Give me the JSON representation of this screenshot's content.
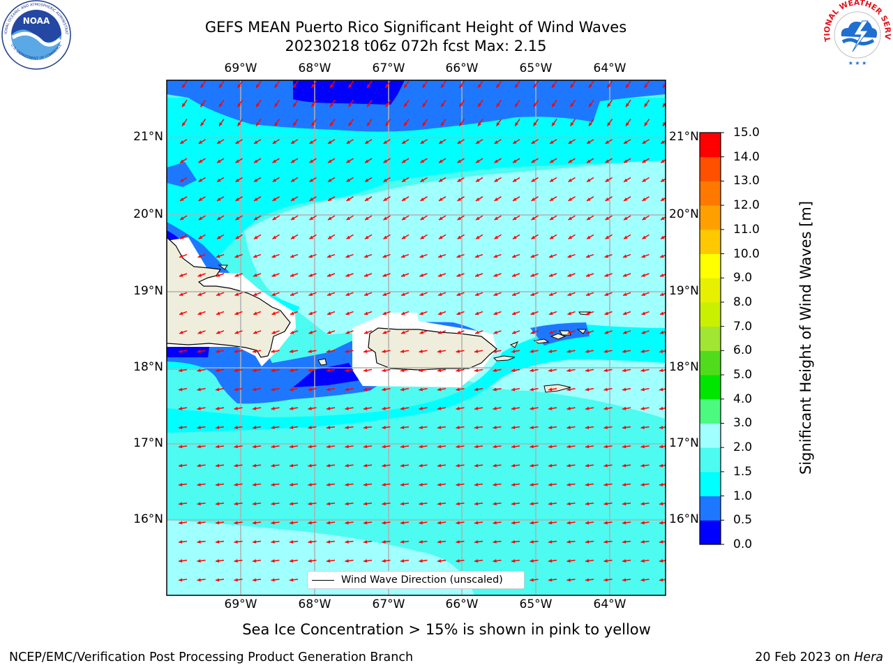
{
  "header": {
    "title_line1": "GEFS MEAN Puerto Rico Significant Height of Wind Waves",
    "title_line2": "20230218 t06z 072h fcst   Max: 2.15"
  },
  "logos": {
    "left": {
      "name": "NOAA",
      "ring_text": "NATIONAL OCEANIC AND ATMOSPHERIC ADMINISTRATION",
      "lower_text": "U.S. DEPARTMENT OF COMMERCE",
      "center_text": "NOAA"
    },
    "right": {
      "name": "National Weather Service",
      "ring_text": "NATIONAL WEATHER SERVICE"
    }
  },
  "map": {
    "lon_ticks": [
      "69°W",
      "68°W",
      "67°W",
      "66°W",
      "65°W",
      "64°W"
    ],
    "lat_ticks": [
      "21°N",
      "20°N",
      "19°N",
      "18°N",
      "17°N",
      "16°N"
    ],
    "legend_label": "Wind Wave Direction (unscaled)",
    "colors": {
      "land": "#efeddc",
      "arrow": "#ff0000",
      "grid": "#b0b0b0"
    }
  },
  "colorbar": {
    "title": "Significant Height of Wind Waves [m]",
    "tick_labels": [
      "0.0",
      "0.5",
      "1.0",
      "1.5",
      "2.0",
      "3.0",
      "4.0",
      "5.0",
      "6.0",
      "7.0",
      "8.0",
      "9.0",
      "10.0",
      "11.0",
      "12.0",
      "13.0",
      "14.0",
      "15.0"
    ],
    "colors": [
      "#0000ff",
      "#1e78ff",
      "#00ffff",
      "#4dfbf0",
      "#a0ffff",
      "#4dfa80",
      "#00e600",
      "#50dc1c",
      "#a0e632",
      "#c8f000",
      "#e6f000",
      "#ffff00",
      "#ffc800",
      "#ffa000",
      "#ff7800",
      "#ff5000",
      "#ff0000"
    ]
  },
  "subtitle": "Sea Ice Concentration > 15% is shown in pink to yellow",
  "footer": {
    "left": "NCEP/EMC/Verification Post Processing Product Generation Branch",
    "right_prefix": "20 Feb 2023 on ",
    "right_host": "Hera"
  }
}
